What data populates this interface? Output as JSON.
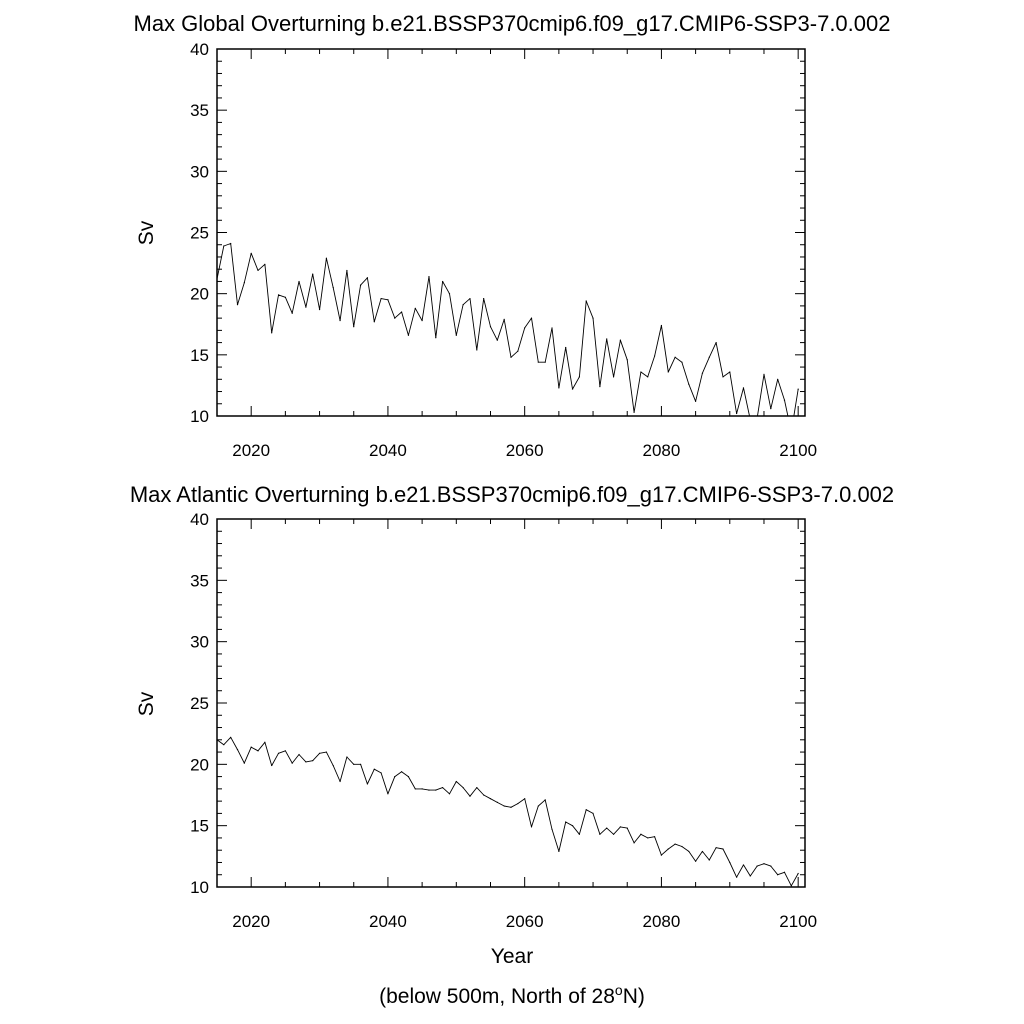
{
  "chart_data": [
    {
      "type": "line",
      "title": "Max Global Overturning b.e21.BSSP370cmip6.f09_g17.CMIP6-SSP3-7.0.002",
      "xlabel": "",
      "ylabel": "Sv",
      "xlim": [
        2015,
        2101
      ],
      "ylim": [
        10,
        40
      ],
      "xticks": [
        "2020",
        "2040",
        "2060",
        "2080",
        "2100"
      ],
      "yticks": [
        "10",
        "15",
        "20",
        "25",
        "30",
        "35",
        "40"
      ],
      "x_start": 2015,
      "values": [
        21.2,
        23.9,
        24.1,
        19.1,
        20.9,
        23.3,
        21.9,
        22.4,
        16.8,
        19.9,
        19.7,
        18.4,
        21.0,
        18.9,
        21.6,
        18.7,
        22.9,
        20.5,
        17.8,
        21.9,
        17.3,
        20.7,
        21.3,
        17.7,
        19.6,
        19.5,
        18.0,
        18.5,
        16.6,
        18.8,
        17.8,
        21.4,
        16.4,
        21.0,
        20.0,
        16.6,
        19.1,
        19.6,
        15.4,
        19.6,
        17.3,
        16.2,
        17.9,
        14.8,
        15.3,
        17.2,
        18.0,
        14.4,
        14.4,
        17.2,
        12.3,
        15.6,
        12.2,
        13.2,
        19.4,
        18.0,
        12.4,
        16.3,
        13.2,
        16.2,
        14.6,
        10.3,
        13.6,
        13.2,
        14.9,
        17.4,
        13.6,
        14.8,
        14.4,
        12.6,
        11.2,
        13.5,
        14.8,
        16.0,
        13.2,
        13.6,
        10.2,
        12.3,
        9.7,
        9.8,
        13.4,
        10.6,
        13.0,
        11.3,
        8.7,
        12.2
      ]
    },
    {
      "type": "line",
      "title": "Max Atlantic Overturning b.e21.BSSP370cmip6.f09_g17.CMIP6-SSP3-7.0.002",
      "xlabel": "Year",
      "ylabel": "Sv",
      "xlim": [
        2015,
        2101
      ],
      "ylim": [
        10,
        40
      ],
      "xticks": [
        "2020",
        "2040",
        "2060",
        "2080",
        "2100"
      ],
      "yticks": [
        "10",
        "15",
        "20",
        "25",
        "30",
        "35",
        "40"
      ],
      "x_start": 2015,
      "values": [
        22.0,
        21.6,
        22.2,
        21.2,
        20.1,
        21.4,
        21.1,
        21.8,
        19.9,
        20.9,
        21.1,
        20.1,
        20.8,
        20.2,
        20.3,
        20.9,
        21.0,
        19.9,
        18.6,
        20.6,
        20.0,
        20.0,
        18.4,
        19.6,
        19.3,
        17.6,
        19.0,
        19.4,
        19.0,
        18.0,
        18.0,
        17.9,
        17.9,
        18.1,
        17.6,
        18.6,
        18.1,
        17.4,
        18.1,
        17.5,
        17.2,
        16.9,
        16.6,
        16.5,
        16.8,
        17.2,
        14.9,
        16.6,
        17.1,
        14.7,
        12.9,
        15.3,
        15.0,
        14.3,
        16.3,
        16.0,
        14.3,
        14.8,
        14.3,
        14.9,
        14.8,
        13.6,
        14.3,
        14.0,
        14.1,
        12.6,
        13.1,
        13.5,
        13.3,
        12.9,
        12.1,
        12.9,
        12.2,
        13.2,
        13.1,
        12.0,
        10.8,
        11.8,
        10.9,
        11.7,
        11.9,
        11.7,
        11.0,
        11.2,
        10.1,
        11.1
      ]
    }
  ],
  "footnote": {
    "prefix": "(below 500m, North of 28",
    "superscript": "o",
    "suffix": "N)"
  }
}
